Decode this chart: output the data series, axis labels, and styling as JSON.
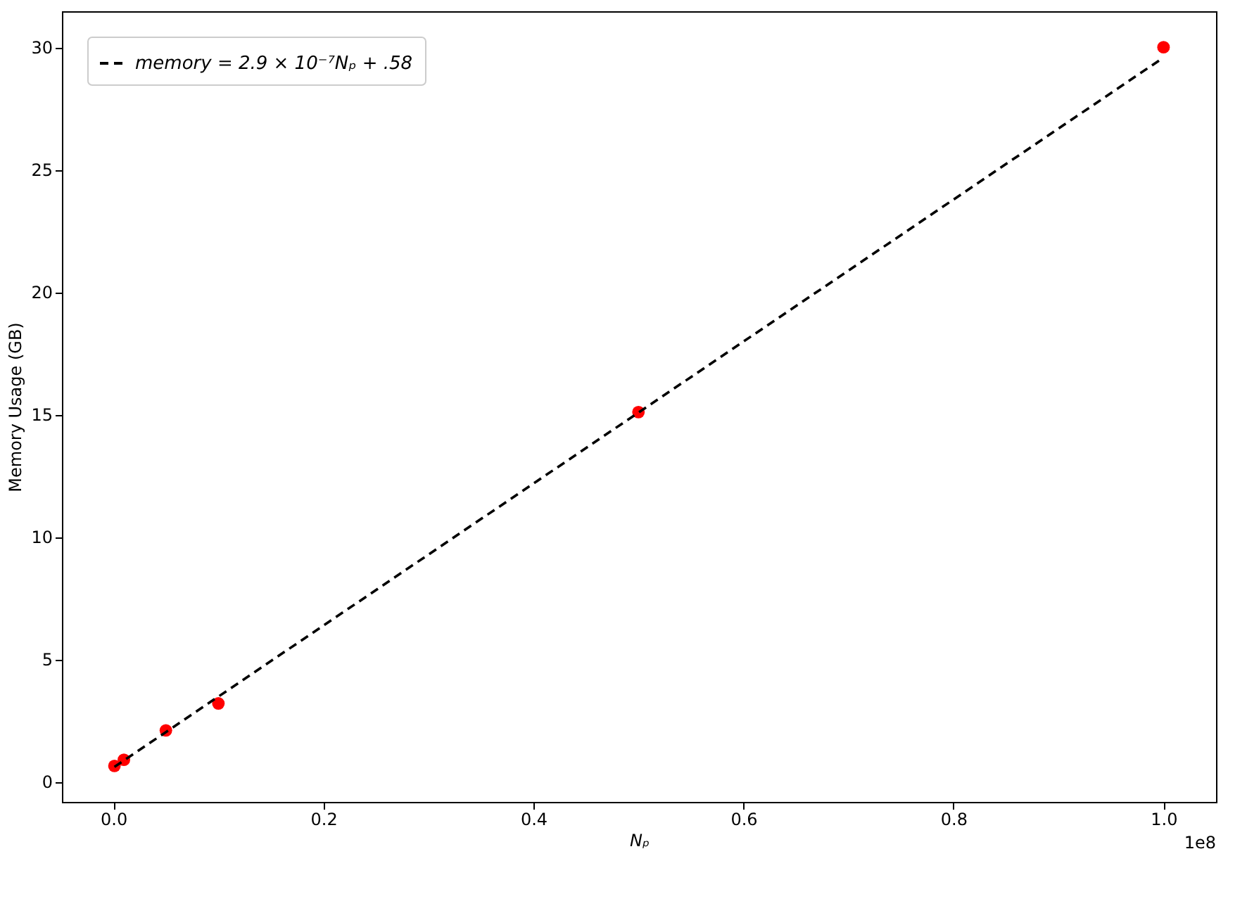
{
  "chart_data": {
    "type": "scatter",
    "xlabel": "Nₚ",
    "ylabel": "Memory Usage (GB)",
    "annotations": [
      "1e8"
    ],
    "series": [
      {
        "color": "#ff0000",
        "marker": "circle",
        "x": [
          0.001,
          0.005,
          0.01,
          0.05,
          0.1,
          0.5,
          1.0
        ],
        "values": [
          0.65,
          null,
          0.9,
          2.1,
          3.2,
          15.1,
          30.0
        ]
      },
      {
        "type": "line",
        "name": "memory = 2.9 × 10⁻⁷Nₚ + .58",
        "color": "#000000",
        "line_style": "dashed",
        "x": [
          0.001,
          1.0
        ],
        "values": [
          0.61,
          29.58
        ]
      }
    ],
    "xlim": [
      -0.049,
      1.05
    ],
    "ylim": [
      -0.82,
      31.47
    ],
    "xticks": [
      {
        "value": 0,
        "label": "0.0"
      },
      {
        "value": 0.2,
        "label": "0.2"
      },
      {
        "value": 0.4,
        "label": "0.4"
      },
      {
        "value": 0.6,
        "label": "0.6"
      },
      {
        "value": 0.8,
        "label": "0.8"
      },
      {
        "value": 1,
        "label": "1.0"
      }
    ],
    "yticks": [
      0,
      5,
      10,
      15,
      20,
      25,
      30
    ],
    "grid": false,
    "legend": "top left"
  }
}
